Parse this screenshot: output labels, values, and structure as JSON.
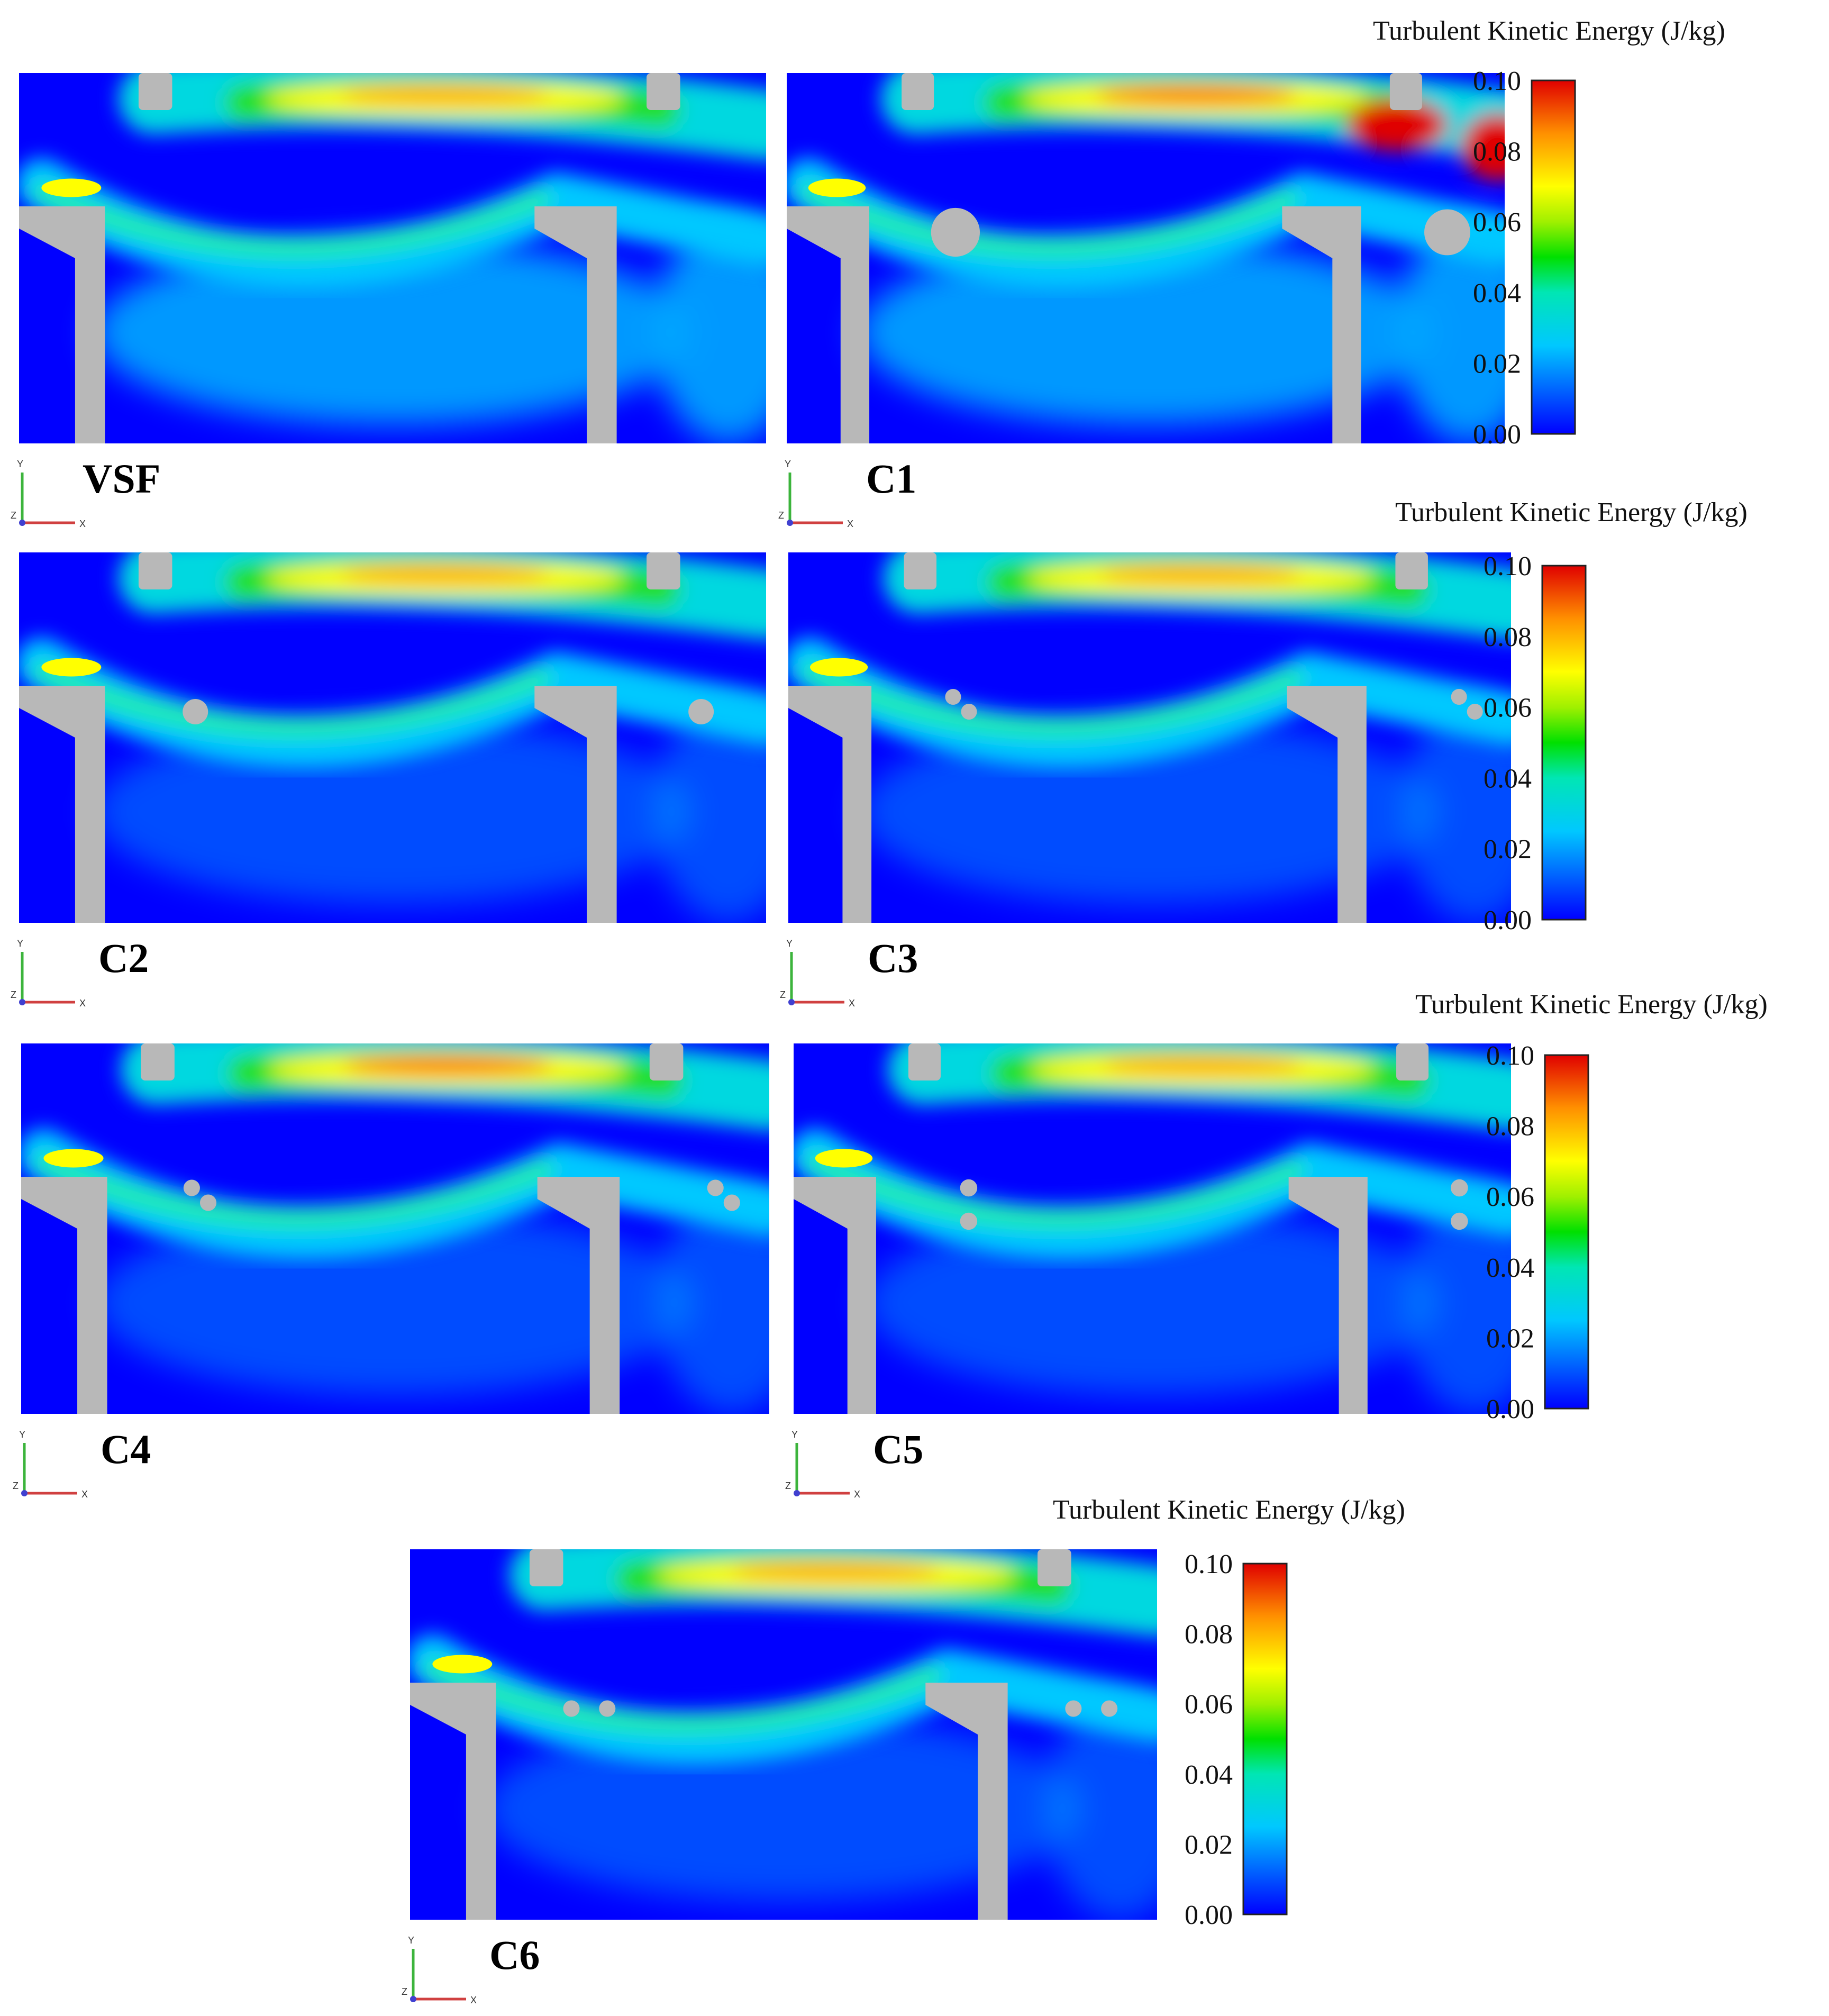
{
  "figure": {
    "legend": {
      "title": "Turbulent Kinetic Energy (J/kg)",
      "ticks": [
        "0.10",
        "0.08",
        "0.06",
        "0.04",
        "0.02",
        "0.00"
      ],
      "colors": [
        "#0000ff",
        "#00c8ff",
        "#00e000",
        "#ffff00",
        "#ff8000",
        "#e00000"
      ]
    },
    "axis_triad": {
      "y": "Y",
      "x": "X",
      "z": "Z"
    },
    "panels": [
      {
        "label": "VSF",
        "obstacle": "none"
      },
      {
        "label": "C1",
        "obstacle": "large-cylinder"
      },
      {
        "label": "C2",
        "obstacle": "single-cylinder"
      },
      {
        "label": "C3",
        "obstacle": "diagonal-pair"
      },
      {
        "label": "C4",
        "obstacle": "diagonal-pair"
      },
      {
        "label": "C5",
        "obstacle": "vertical-pair"
      },
      {
        "label": "C6",
        "obstacle": "horizontal-pair"
      }
    ]
  }
}
